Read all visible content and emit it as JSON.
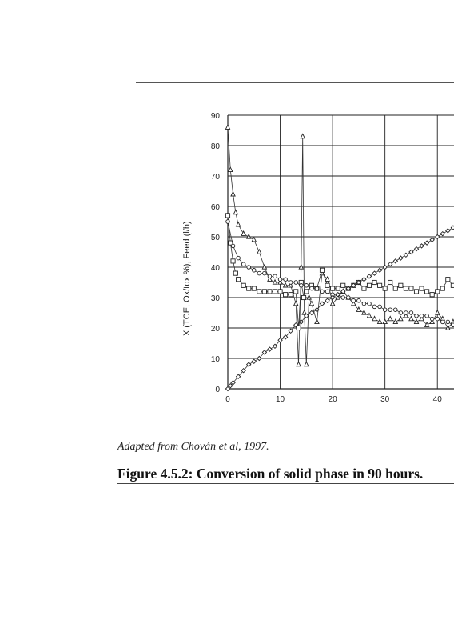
{
  "source_note": "Adapted from Chován et al, 1997.",
  "caption": "Figure 4.5.2: Conversion of solid phase in 90 hours.",
  "chart_data": {
    "type": "line",
    "ylabel": "X (TCE, Ox/tox %), Feed (l/h)",
    "xlabel": "",
    "xlim": [
      0,
      45
    ],
    "ylim": [
      0,
      90
    ],
    "x_ticks": [
      0,
      10,
      20,
      30,
      40
    ],
    "y_ticks": [
      0,
      10,
      20,
      30,
      40,
      50,
      60,
      70,
      80,
      90
    ],
    "grid": true,
    "legend": "none",
    "series": [
      {
        "marker": "triangle",
        "points": [
          [
            0,
            86
          ],
          [
            0.5,
            72
          ],
          [
            1,
            64
          ],
          [
            1.5,
            58
          ],
          [
            2,
            54
          ],
          [
            3,
            51
          ],
          [
            4,
            50
          ],
          [
            5,
            49
          ],
          [
            6,
            45
          ],
          [
            7,
            40
          ],
          [
            8,
            36
          ],
          [
            9,
            35
          ],
          [
            10,
            35
          ],
          [
            11,
            34
          ],
          [
            12,
            34
          ],
          [
            13,
            28
          ],
          [
            13.5,
            8
          ],
          [
            14,
            40
          ],
          [
            14.3,
            83
          ],
          [
            14.6,
            25
          ],
          [
            15,
            8
          ],
          [
            15.5,
            30
          ],
          [
            16,
            28
          ],
          [
            17,
            22
          ],
          [
            18,
            38
          ],
          [
            19,
            36
          ],
          [
            20,
            28
          ],
          [
            21,
            30
          ],
          [
            22,
            32
          ],
          [
            23,
            30
          ],
          [
            24,
            28
          ],
          [
            25,
            26
          ],
          [
            26,
            25
          ],
          [
            27,
            24
          ],
          [
            28,
            23
          ],
          [
            29,
            22
          ],
          [
            30,
            22
          ],
          [
            31,
            23
          ],
          [
            32,
            22
          ],
          [
            33,
            23
          ],
          [
            34,
            24
          ],
          [
            35,
            23
          ],
          [
            36,
            22
          ],
          [
            37,
            23
          ],
          [
            38,
            21
          ],
          [
            39,
            22
          ],
          [
            40,
            25
          ],
          [
            41,
            23
          ],
          [
            42,
            20
          ],
          [
            43,
            22
          ]
        ]
      },
      {
        "marker": "square",
        "points": [
          [
            0,
            57
          ],
          [
            0.5,
            48
          ],
          [
            1,
            42
          ],
          [
            1.5,
            38
          ],
          [
            2,
            36
          ],
          [
            3,
            34
          ],
          [
            4,
            33
          ],
          [
            5,
            33
          ],
          [
            6,
            32
          ],
          [
            7,
            32
          ],
          [
            8,
            32
          ],
          [
            9,
            32
          ],
          [
            10,
            32
          ],
          [
            11,
            31
          ],
          [
            12,
            31
          ],
          [
            13,
            32
          ],
          [
            13.5,
            20
          ],
          [
            14,
            35
          ],
          [
            14.5,
            30
          ],
          [
            15,
            32
          ],
          [
            16,
            34
          ],
          [
            17,
            33
          ],
          [
            18,
            39
          ],
          [
            19,
            34
          ],
          [
            20,
            33
          ],
          [
            21,
            33
          ],
          [
            22,
            34
          ],
          [
            23,
            33
          ],
          [
            24,
            34
          ],
          [
            25,
            35
          ],
          [
            26,
            33
          ],
          [
            27,
            34
          ],
          [
            28,
            35
          ],
          [
            29,
            34
          ],
          [
            30,
            33
          ],
          [
            31,
            35
          ],
          [
            32,
            33
          ],
          [
            33,
            34
          ],
          [
            34,
            33
          ],
          [
            35,
            33
          ],
          [
            36,
            32
          ],
          [
            37,
            33
          ],
          [
            38,
            32
          ],
          [
            39,
            31
          ],
          [
            40,
            32
          ],
          [
            41,
            33
          ],
          [
            42,
            36
          ],
          [
            43,
            34
          ]
        ]
      },
      {
        "marker": "circle",
        "points": [
          [
            0,
            55
          ],
          [
            1,
            47
          ],
          [
            2,
            43
          ],
          [
            3,
            41
          ],
          [
            4,
            40
          ],
          [
            5,
            39
          ],
          [
            6,
            38
          ],
          [
            7,
            38
          ],
          [
            8,
            37
          ],
          [
            9,
            37
          ],
          [
            10,
            36
          ],
          [
            11,
            36
          ],
          [
            12,
            35
          ],
          [
            13,
            35
          ],
          [
            14,
            34
          ],
          [
            15,
            34
          ],
          [
            16,
            33
          ],
          [
            17,
            33
          ],
          [
            18,
            32
          ],
          [
            19,
            32
          ],
          [
            20,
            31
          ],
          [
            21,
            31
          ],
          [
            22,
            30
          ],
          [
            23,
            30
          ],
          [
            24,
            29
          ],
          [
            25,
            29
          ],
          [
            26,
            28
          ],
          [
            27,
            28
          ],
          [
            28,
            27
          ],
          [
            29,
            27
          ],
          [
            30,
            26
          ],
          [
            31,
            26
          ],
          [
            32,
            26
          ],
          [
            33,
            25
          ],
          [
            34,
            25
          ],
          [
            35,
            25
          ],
          [
            36,
            24
          ],
          [
            37,
            24
          ],
          [
            38,
            24
          ],
          [
            39,
            23
          ],
          [
            40,
            23
          ],
          [
            41,
            22
          ],
          [
            42,
            22
          ],
          [
            43,
            21
          ]
        ]
      },
      {
        "marker": "diamond",
        "points": [
          [
            0,
            0
          ],
          [
            0.5,
            1
          ],
          [
            1,
            2
          ],
          [
            2,
            4
          ],
          [
            3,
            6
          ],
          [
            4,
            8
          ],
          [
            5,
            9
          ],
          [
            6,
            10
          ],
          [
            7,
            12
          ],
          [
            8,
            13
          ],
          [
            9,
            14
          ],
          [
            10,
            16
          ],
          [
            11,
            17
          ],
          [
            12,
            19
          ],
          [
            13,
            21
          ],
          [
            14,
            22
          ],
          [
            15,
            24
          ],
          [
            16,
            25
          ],
          [
            17,
            26
          ],
          [
            18,
            28
          ],
          [
            19,
            29
          ],
          [
            20,
            30
          ],
          [
            21,
            31
          ],
          [
            22,
            32
          ],
          [
            23,
            33
          ],
          [
            24,
            34
          ],
          [
            25,
            35
          ],
          [
            26,
            36
          ],
          [
            27,
            37
          ],
          [
            28,
            38
          ],
          [
            29,
            39
          ],
          [
            30,
            40
          ],
          [
            31,
            41
          ],
          [
            32,
            42
          ],
          [
            33,
            43
          ],
          [
            34,
            44
          ],
          [
            35,
            45
          ],
          [
            36,
            46
          ],
          [
            37,
            47
          ],
          [
            38,
            48
          ],
          [
            39,
            49
          ],
          [
            40,
            50
          ],
          [
            41,
            51
          ],
          [
            42,
            52
          ],
          [
            43,
            53
          ],
          [
            44,
            54
          ],
          [
            45,
            55
          ]
        ]
      }
    ]
  }
}
